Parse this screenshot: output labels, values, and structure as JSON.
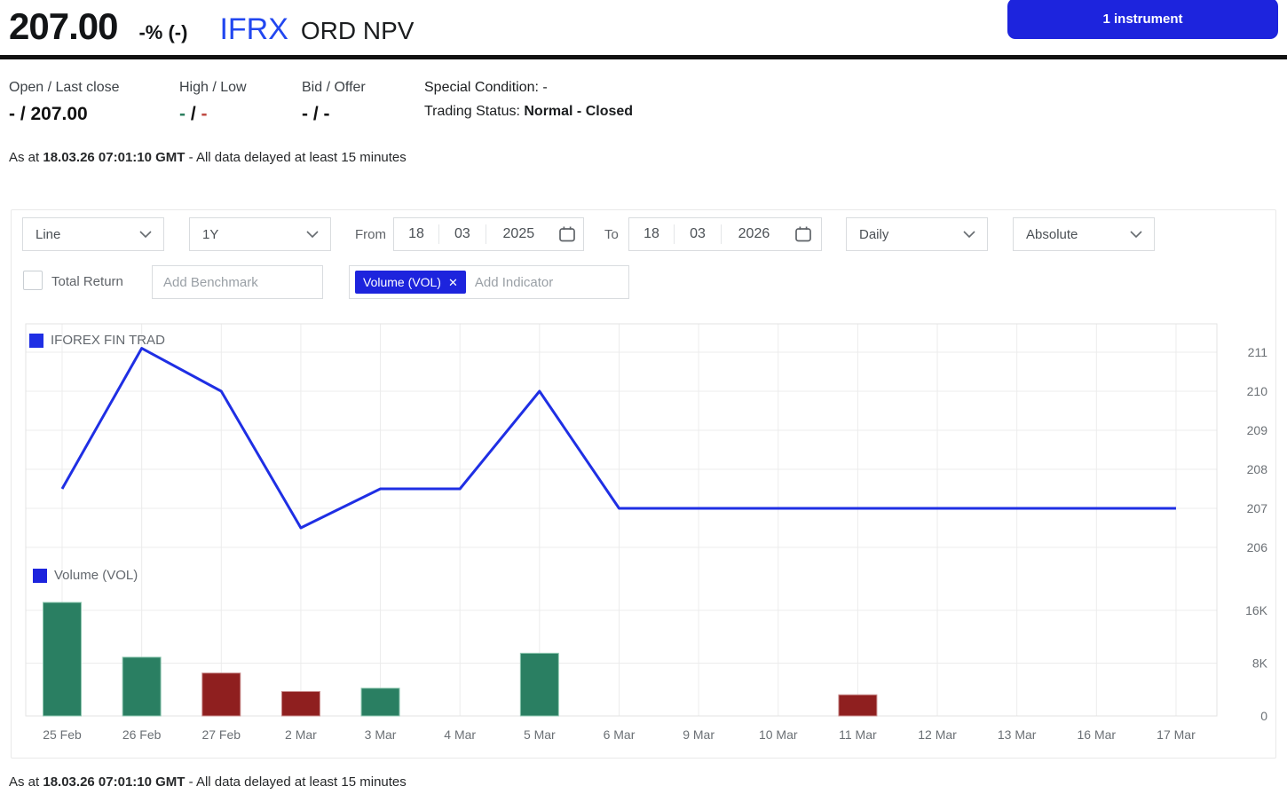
{
  "header": {
    "price": "207.00",
    "change": "-% (-)",
    "ticker": "IFRX",
    "name": "ORD NPV",
    "instrument_button": "1 instrument"
  },
  "quote": {
    "open_last_close_label": "Open / Last close",
    "open_last_close_value": "- / 207.00",
    "high_low_label": "High / Low",
    "high_low": {
      "high": "-",
      "sep": " / ",
      "low": "-"
    },
    "bid_offer_label": "Bid / Offer",
    "bid_offer_value": "- / -",
    "special_condition_label": "Special Condition: ",
    "special_condition_value": "-",
    "trading_status_label": "Trading Status: ",
    "trading_status_value": "Normal - Closed"
  },
  "timestamp": {
    "prefix": "As at ",
    "bold": "18.03.26 07:01:10 GMT",
    "suffix": " - All data delayed at least 15 minutes"
  },
  "controls": {
    "chart_type": "Line",
    "range": "1Y",
    "from_label": "From",
    "from": {
      "day": "18",
      "month": "03",
      "year": "2025"
    },
    "to_label": "To",
    "to": {
      "day": "18",
      "month": "03",
      "year": "2026"
    },
    "frequency": "Daily",
    "mode": "Absolute",
    "total_return_label": "Total Return",
    "benchmark_placeholder": "Add Benchmark",
    "indicator_chip": "Volume (VOL)",
    "indicator_chip_close": "✕",
    "indicator_placeholder": "Add Indicator"
  },
  "colors": {
    "accent_blue": "#1d24dd",
    "line_blue": "#1f2fe4",
    "bar_up": "#2a7f62",
    "bar_up_border": "#8ec7b0",
    "bar_down": "#8f1f1f",
    "bar_down_border": "#c98c8c",
    "high_green": "#2e8060",
    "low_red": "#bf4a42"
  },
  "chart_data": {
    "type": "line",
    "title": "",
    "categories": [
      "25 Feb",
      "26 Feb",
      "27 Feb",
      "2 Mar",
      "3 Mar",
      "4 Mar",
      "5 Mar",
      "6 Mar",
      "9 Mar",
      "10 Mar",
      "11 Mar",
      "12 Mar",
      "13 Mar",
      "16 Mar",
      "17 Mar"
    ],
    "series": [
      {
        "name": "IFOREX FIN TRAD",
        "type": "line",
        "color": "#1f2fe4",
        "values": [
          207.5,
          211.1,
          210.0,
          206.5,
          207.5,
          207.5,
          210.0,
          207.0,
          207.0,
          207.0,
          207.0,
          207.0,
          207.0,
          207.0,
          207.0
        ]
      },
      {
        "name": "Volume (VOL)",
        "type": "bar",
        "values": [
          17200,
          8900,
          6500,
          3700,
          4200,
          0,
          9500,
          0,
          0,
          0,
          3200,
          0,
          0,
          0,
          0
        ],
        "directions": [
          "up",
          "up",
          "down",
          "down",
          "up",
          null,
          "up",
          null,
          null,
          null,
          "down",
          null,
          null,
          null,
          null
        ]
      }
    ],
    "price_axis": {
      "ticks": [
        "211",
        "210",
        "209",
        "208",
        "207",
        "206"
      ],
      "range": [
        205.8,
        211.3
      ],
      "side": "right"
    },
    "volume_axis": {
      "ticks": [
        {
          "label": "16K",
          "value": 16000
        },
        {
          "label": "8K",
          "value": 8000
        },
        {
          "label": "0",
          "value": 0
        }
      ],
      "side": "right"
    },
    "xlabel": "",
    "ylabel": "",
    "grid": true,
    "legend_position": "inside-top-left"
  }
}
